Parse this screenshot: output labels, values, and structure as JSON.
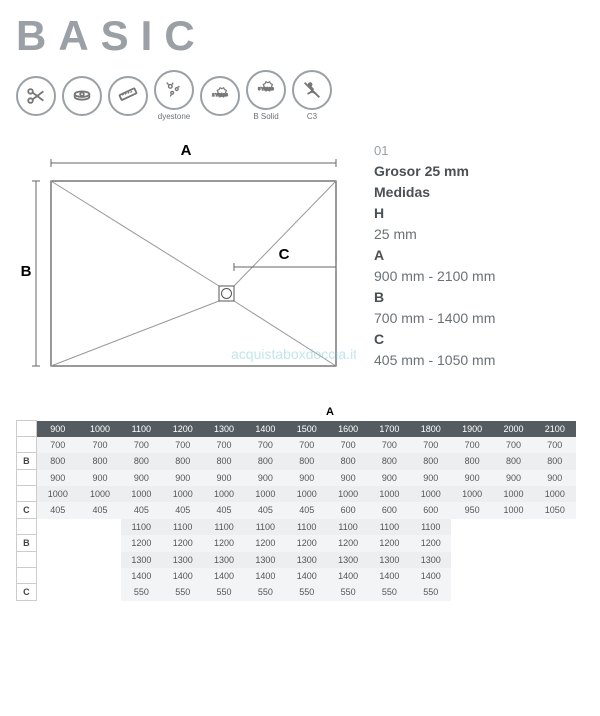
{
  "title": "BASIC",
  "icons": [
    {
      "name": "scissors",
      "sub": ""
    },
    {
      "name": "drain",
      "sub": ""
    },
    {
      "name": "ruler",
      "sub": ""
    },
    {
      "name": "antibac",
      "sub": "dyestone"
    },
    {
      "name": "warranty2",
      "sub": ""
    },
    {
      "name": "warranty5",
      "sub": "B Solid"
    },
    {
      "name": "antislip",
      "sub": "C3"
    }
  ],
  "diagram": {
    "labelA": "A",
    "labelB": "B",
    "labelC": "C"
  },
  "spec": {
    "num": "01",
    "thickness_label": "Grosor 25 mm",
    "measures": "Medidas",
    "H": "H",
    "H_val": "25 mm",
    "A": "A",
    "A_val": "900 mm - 2100 mm",
    "B": "B",
    "B_val": "700 mm - 1400 mm",
    "C": "C",
    "C_val": "405 mm - 1050 mm"
  },
  "watermark": "acquistaboxdoccia.it",
  "table": {
    "top_label": "A",
    "headerA": [
      "900",
      "1000",
      "1100",
      "1200",
      "1300",
      "1400",
      "1500",
      "1600",
      "1700",
      "1800",
      "1900",
      "2000",
      "2100"
    ],
    "groupB_label": "B",
    "groupC_label": "C",
    "rowsB": [
      [
        "700",
        "700",
        "700",
        "700",
        "700",
        "700",
        "700",
        "700",
        "700",
        "700",
        "700",
        "700",
        "700"
      ],
      [
        "800",
        "800",
        "800",
        "800",
        "800",
        "800",
        "800",
        "800",
        "800",
        "800",
        "800",
        "800",
        "800"
      ],
      [
        "900",
        "900",
        "900",
        "900",
        "900",
        "900",
        "900",
        "900",
        "900",
        "900",
        "900",
        "900",
        "900"
      ],
      [
        "1000",
        "1000",
        "1000",
        "1000",
        "1000",
        "1000",
        "1000",
        "1000",
        "1000",
        "1000",
        "1000",
        "1000",
        "1000"
      ]
    ],
    "rowC": [
      "405",
      "405",
      "405",
      "405",
      "405",
      "405",
      "405",
      "600",
      "600",
      "600",
      "950",
      "1000",
      "1050"
    ],
    "rowsB2": [
      [
        "1100",
        "1100",
        "1100",
        "1100",
        "1100",
        "1100",
        "1100",
        "1100"
      ],
      [
        "1200",
        "1200",
        "1200",
        "1200",
        "1200",
        "1200",
        "1200",
        "1200"
      ],
      [
        "1300",
        "1300",
        "1300",
        "1300",
        "1300",
        "1300",
        "1300",
        "1300"
      ],
      [
        "1400",
        "1400",
        "1400",
        "1400",
        "1400",
        "1400",
        "1400",
        "1400"
      ]
    ],
    "rowC2": [
      "550",
      "550",
      "550",
      "550",
      "550",
      "550",
      "550",
      "550"
    ]
  },
  "colors": {
    "header_bg": "#555c61",
    "row_light": "#f3f4f5",
    "row_alt": "#eceeef",
    "icon_border": "#9aa0a5",
    "text_gray": "#6b7177"
  }
}
